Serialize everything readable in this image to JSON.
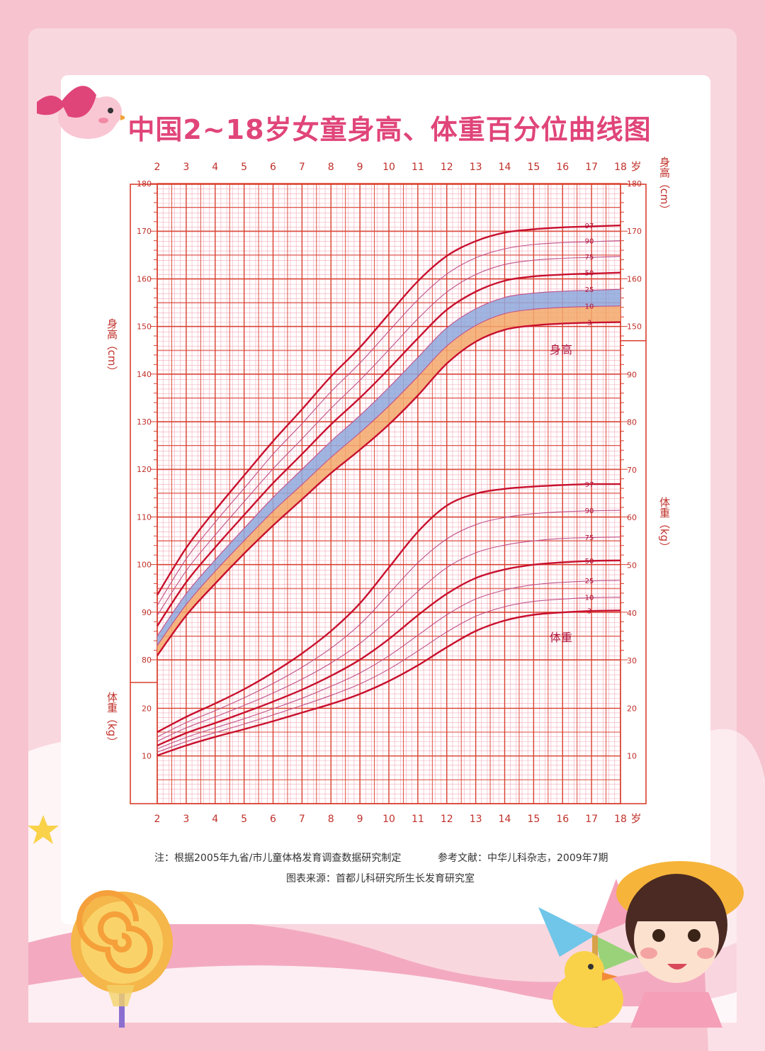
{
  "title": "中国2~18岁女童身高、体重百分位曲线图",
  "notes": {
    "basis": "注：根据2005年九省/市儿童体格发育调查数据研究制定",
    "reference": "参考文献：中华儿科杂志，2009年7期",
    "source": "图表来源：首都儿科研究所生长发育研究室"
  },
  "colors": {
    "background": "#f7c9d4",
    "grid_major": "#d9402f",
    "grid_minor": "#f2a9b8",
    "curve_major": "#c8102e",
    "curve_minor": "#c0508a",
    "band_blue": "#8fa8dc",
    "band_orange": "#f3a86b",
    "title": "#e0457a"
  },
  "chart_data": {
    "type": "line",
    "title": "中国2~18岁女童身高、体重百分位曲线图",
    "x": [
      2,
      3,
      4,
      5,
      6,
      7,
      8,
      9,
      10,
      11,
      12,
      13,
      14,
      15,
      16,
      17,
      18
    ],
    "x_unit_label": "岁",
    "xlim": [
      2,
      18
    ],
    "grid": true,
    "height": {
      "label": "身高",
      "ylabel": "身高（cm）",
      "ylim": [
        80,
        180
      ],
      "yticks": [
        80,
        90,
        100,
        110,
        120,
        130,
        140,
        150,
        160,
        170,
        180
      ],
      "series": [
        {
          "name": "97",
          "major": true,
          "values": [
            93.6,
            103.5,
            111.4,
            118.7,
            125.9,
            132.6,
            139.5,
            145.6,
            152.6,
            159.5,
            164.8,
            167.9,
            169.7,
            170.4,
            170.8,
            171.0,
            171.2
          ]
        },
        {
          "name": "90",
          "major": false,
          "values": [
            91.4,
            101.2,
            108.9,
            116.0,
            123.2,
            129.6,
            136.3,
            142.3,
            149.0,
            155.6,
            161.0,
            164.4,
            166.3,
            167.2,
            167.6,
            167.8,
            168.0
          ]
        },
        {
          "name": "75",
          "major": false,
          "values": [
            89.3,
            98.7,
            106.2,
            113.2,
            120.1,
            126.4,
            132.8,
            138.7,
            145.1,
            151.6,
            157.2,
            160.9,
            163.0,
            163.9,
            164.3,
            164.5,
            164.7
          ]
        },
        {
          "name": "50",
          "major": true,
          "values": [
            87.1,
            96.3,
            103.6,
            110.4,
            117.1,
            123.2,
            129.4,
            135.0,
            141.1,
            147.5,
            153.5,
            157.3,
            159.6,
            160.5,
            160.9,
            161.1,
            161.3
          ]
        },
        {
          "name": "25",
          "major": false,
          "values": [
            85.0,
            93.9,
            101.0,
            107.6,
            114.1,
            120.0,
            125.9,
            131.3,
            137.2,
            143.5,
            149.7,
            153.7,
            156.1,
            157.0,
            157.4,
            157.6,
            157.8
          ]
        },
        {
          "name": "10",
          "major": false,
          "values": [
            83.0,
            91.6,
            98.6,
            105.0,
            111.2,
            116.8,
            122.5,
            127.7,
            133.3,
            139.5,
            145.9,
            150.2,
            152.7,
            153.6,
            154.0,
            154.2,
            154.3
          ]
        },
        {
          "name": "3",
          "major": true,
          "values": [
            80.9,
            89.3,
            96.0,
            102.3,
            108.2,
            113.7,
            119.2,
            124.1,
            129.4,
            135.5,
            142.2,
            146.8,
            149.3,
            150.2,
            150.6,
            150.8,
            150.9
          ]
        }
      ]
    },
    "weight": {
      "label": "体重",
      "ylabel": "体重（kg）",
      "ylim": [
        0,
        100
      ],
      "yticks": [
        10,
        20,
        30,
        40,
        50,
        60,
        70,
        80,
        90
      ],
      "series": [
        {
          "name": "97",
          "major": true,
          "values": [
            15.0,
            18.2,
            21.0,
            24.0,
            27.5,
            31.5,
            36.2,
            42.0,
            49.5,
            57.0,
            62.5,
            65.0,
            66.0,
            66.5,
            66.8,
            67.0,
            67.0
          ]
        },
        {
          "name": "90",
          "major": false,
          "values": [
            14.0,
            17.0,
            19.5,
            22.2,
            25.2,
            28.6,
            32.6,
            37.6,
            44.0,
            50.5,
            55.5,
            58.5,
            60.0,
            60.8,
            61.2,
            61.4,
            61.5
          ]
        },
        {
          "name": "75",
          "major": false,
          "values": [
            13.1,
            15.9,
            18.2,
            20.6,
            23.2,
            26.1,
            29.5,
            33.6,
            38.8,
            44.5,
            49.5,
            52.6,
            54.2,
            55.1,
            55.6,
            55.8,
            55.9
          ]
        },
        {
          "name": "50",
          "major": true,
          "values": [
            12.2,
            14.8,
            16.9,
            19.1,
            21.4,
            23.9,
            26.8,
            30.2,
            34.5,
            39.5,
            44.0,
            47.3,
            49.1,
            50.1,
            50.6,
            50.9,
            51.0
          ]
        },
        {
          "name": "25",
          "major": false,
          "values": [
            11.5,
            13.9,
            15.9,
            17.8,
            19.9,
            22.1,
            24.6,
            27.4,
            31.0,
            35.3,
            39.6,
            42.9,
            44.8,
            45.9,
            46.4,
            46.7,
            46.8
          ]
        },
        {
          "name": "10",
          "major": false,
          "values": [
            10.8,
            13.0,
            14.9,
            16.7,
            18.6,
            20.6,
            22.7,
            25.1,
            28.2,
            32.0,
            36.0,
            39.3,
            41.3,
            42.4,
            42.9,
            43.2,
            43.3
          ]
        },
        {
          "name": "3",
          "major": true,
          "values": [
            10.1,
            12.2,
            14.0,
            15.6,
            17.3,
            19.1,
            20.9,
            23.0,
            25.7,
            29.0,
            32.8,
            36.2,
            38.4,
            39.6,
            40.1,
            40.4,
            40.5
          ]
        }
      ]
    }
  }
}
